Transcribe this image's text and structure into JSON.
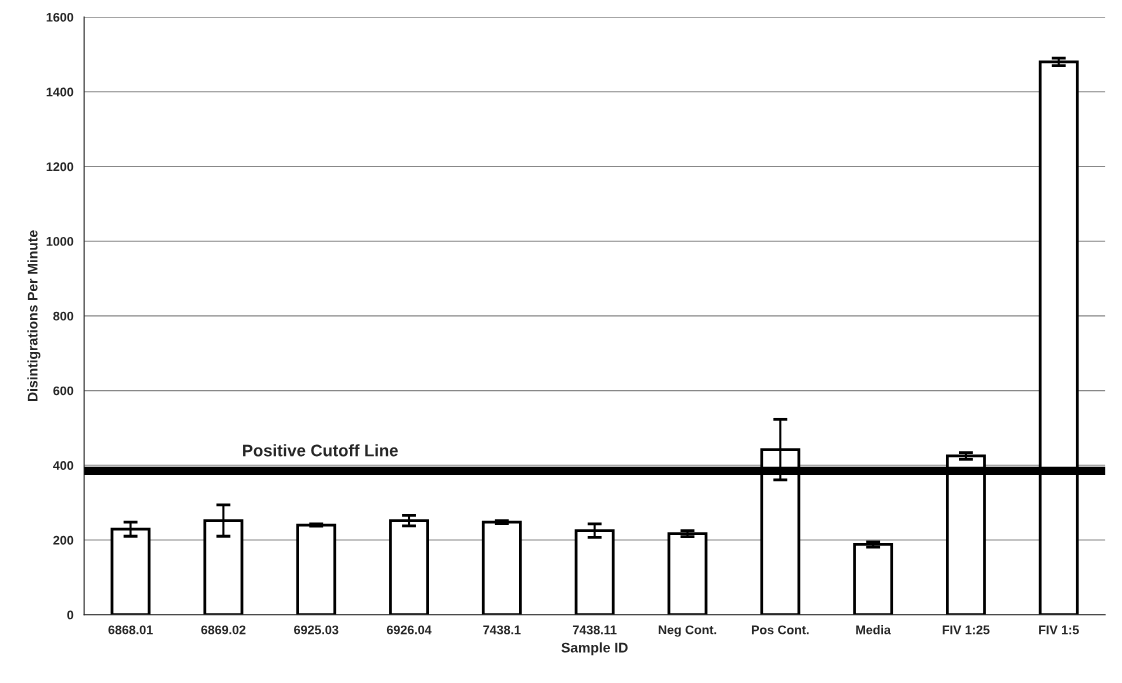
{
  "chart_data": {
    "type": "bar",
    "xlabel": "Sample ID",
    "ylabel": "Disintigrations Per Minute",
    "categories": [
      "6868.01",
      "6869.02",
      "6925.03",
      "6926.04",
      "7438.1",
      "7438.11",
      "Neg Cont.",
      "Pos Cont.",
      "Media",
      "FIV 1:25",
      "FIV 1:5"
    ],
    "values": [
      229,
      252,
      240,
      252,
      248,
      225,
      217,
      442,
      188,
      425,
      1480
    ],
    "errors": [
      19,
      42,
      3,
      14,
      4,
      18,
      8,
      81,
      7,
      9,
      10
    ],
    "color": "#ffffff",
    "ylim": [
      0,
      1600
    ],
    "yticks": [
      0,
      200,
      400,
      600,
      800,
      1000,
      1200,
      1400,
      1600
    ],
    "grid": "y",
    "ref_lines": [
      {
        "axis": "y",
        "value": 385,
        "label": "Positive Cutoff Line",
        "color": "#000000"
      }
    ]
  }
}
